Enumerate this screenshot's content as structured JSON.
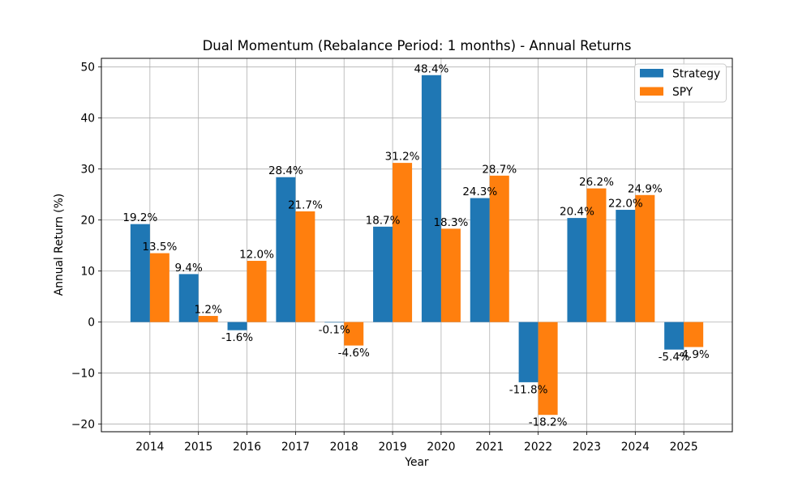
{
  "figure": {
    "background": "#ffffff"
  },
  "chart_data": {
    "type": "bar",
    "title": "Dual Momentum (Rebalance Period: 1 months) - Annual Returns",
    "xlabel": "Year",
    "ylabel": "Annual Return (%)",
    "categories": [
      "2014",
      "2015",
      "2016",
      "2017",
      "2018",
      "2019",
      "2020",
      "2021",
      "2022",
      "2023",
      "2024",
      "2025"
    ],
    "series": [
      {
        "name": "Strategy",
        "color": "#1f77b4",
        "values": [
          19.2,
          9.4,
          -1.6,
          28.4,
          -0.1,
          18.7,
          48.4,
          24.3,
          -11.8,
          20.4,
          22.0,
          -5.4
        ]
      },
      {
        "name": "SPY",
        "color": "#ff7f0e",
        "values": [
          13.5,
          1.2,
          12.0,
          21.7,
          -4.6,
          31.2,
          18.3,
          28.7,
          -18.2,
          26.2,
          24.9,
          -4.9
        ]
      }
    ],
    "bar_value_label_suffix": "%",
    "ylim": [
      -21.5,
      51.7
    ],
    "yticks": [
      -20,
      -10,
      0,
      10,
      20,
      30,
      40,
      50
    ],
    "grid": true,
    "grid_color": "#b0b0b0",
    "text_color": "#000000",
    "legend_position": "upper right"
  }
}
